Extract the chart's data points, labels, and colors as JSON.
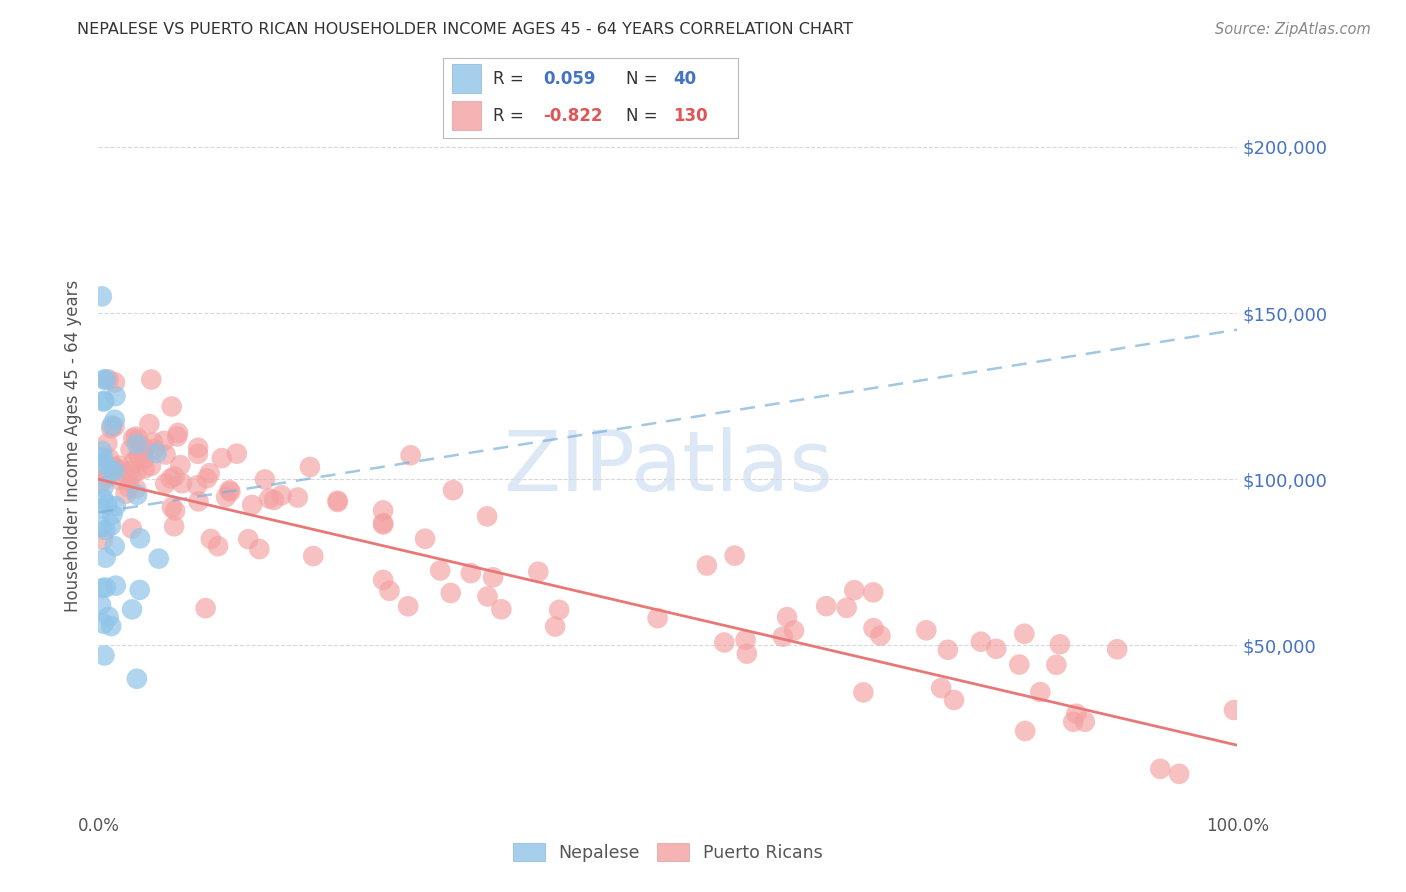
{
  "title": "NEPALESE VS PUERTO RICAN HOUSEHOLDER INCOME AGES 45 - 64 YEARS CORRELATION CHART",
  "source": "Source: ZipAtlas.com",
  "ylabel": "Householder Income Ages 45 - 64 years",
  "ytick_labels": [
    "$50,000",
    "$100,000",
    "$150,000",
    "$200,000"
  ],
  "ytick_values": [
    50000,
    100000,
    150000,
    200000
  ],
  "ymin": 0,
  "ymax": 220000,
  "xmin": 0.0,
  "xmax": 1.0,
  "legend_nepalese_R": "0.059",
  "legend_nepalese_N": "40",
  "legend_pr_R": "-0.822",
  "legend_pr_N": "130",
  "nepalese_color": "#90c4e8",
  "pr_color": "#f4a0a0",
  "nepalese_line_color": "#7ab0d8",
  "pr_line_color": "#e87878",
  "watermark_color": "#dce8f5",
  "background_color": "#ffffff",
  "grid_color": "#d8d8d8",
  "title_color": "#333333",
  "source_color": "#888888",
  "ylabel_color": "#555555",
  "tick_color": "#555555",
  "right_tick_color": "#4472c4",
  "legend_label_color": "#333333",
  "legend_nep_value_color": "#4472c4",
  "legend_pr_value_color": "#e05555"
}
